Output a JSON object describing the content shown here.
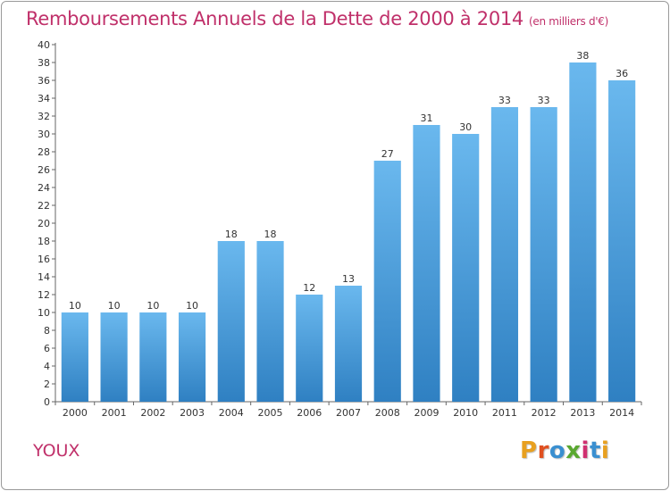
{
  "page": {
    "commune": "YOUX",
    "brand": "Proxiti"
  },
  "chart_data": {
    "type": "bar",
    "title": "Remboursements Annuels de la Dette de 2000 à 2014",
    "subtitle": "(en milliers d'€)",
    "xlabel": "",
    "ylabel": "",
    "categories": [
      "2000",
      "2001",
      "2002",
      "2003",
      "2004",
      "2005",
      "2006",
      "2007",
      "2008",
      "2009",
      "2010",
      "2011",
      "2012",
      "2013",
      "2014"
    ],
    "values": [
      10,
      10,
      10,
      10,
      18,
      18,
      12,
      13,
      27,
      31,
      30,
      33,
      33,
      38,
      36
    ],
    "ylim": [
      0,
      40
    ],
    "ytick_step": 2,
    "grid": false,
    "data_labels": true,
    "colors": {
      "bar_light": "#6ab8ee",
      "bar_dark": "#2f80c2",
      "axis": "#666666",
      "text": "#333333",
      "title": "#c0306a"
    }
  }
}
